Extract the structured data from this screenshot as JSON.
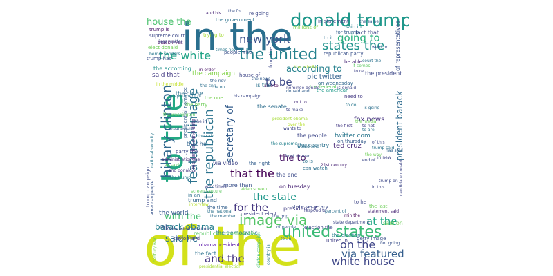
{
  "words": [
    {
      "text": "of the",
      "color": "#d3e11a"
    },
    {
      "text": "in the",
      "color": "#2a6f8e"
    },
    {
      "text": "to the",
      "color": "#23a883"
    },
    {
      "text": "donald trump",
      "color": "#1f988b"
    },
    {
      "text": "the united",
      "color": "#26828e"
    },
    {
      "text": "united states",
      "color": "#3aba76"
    },
    {
      "text": "hillary clinton",
      "color": "#31688e"
    },
    {
      "text": "featured image",
      "color": "#2c738e"
    },
    {
      "text": "image via",
      "color": "#54c568"
    },
    {
      "text": "states the",
      "color": "#1f938c"
    },
    {
      "text": "the white",
      "color": "#20a486"
    },
    {
      "text": "the republican",
      "color": "#2c738e"
    },
    {
      "text": "going to",
      "color": "#2ab07f"
    },
    {
      "text": "new york",
      "color": "#3b528b"
    },
    {
      "text": "that the",
      "color": "#440154"
    },
    {
      "text": "for the",
      "color": "#453781"
    },
    {
      "text": "the state",
      "color": "#1f988b"
    },
    {
      "text": "according to",
      "color": "#26818e"
    },
    {
      "text": "to be",
      "color": "#3e4a89"
    },
    {
      "text": "house the",
      "color": "#4ac16d"
    },
    {
      "text": "on the",
      "color": "#404688"
    },
    {
      "text": "at the",
      "color": "#22a785"
    },
    {
      "text": "white house",
      "color": "#3f4788"
    },
    {
      "text": "via featured",
      "color": "#355f8d"
    },
    {
      "text": "and the",
      "color": "#453581"
    },
    {
      "text": "barack obama",
      "color": "#277f8e"
    },
    {
      "text": "with the",
      "color": "#44bf70"
    },
    {
      "text": "said he",
      "color": "#2d708e"
    },
    {
      "text": "president barack",
      "color": "#2f6b8e"
    },
    {
      "text": "secretary of",
      "color": "#355e8d"
    },
    {
      "text": "the to",
      "color": "#471365"
    },
    {
      "text": "of representatives",
      "color": "#3b528b"
    },
    {
      "text": "pic twitter",
      "color": "#33628d"
    },
    {
      "text": "the president",
      "color": "#3e4989"
    },
    {
      "text": "ted cruz",
      "color": "#482979"
    },
    {
      "text": "fox news",
      "color": "#46337f"
    },
    {
      "text": "twitter com",
      "color": "#2a778e"
    },
    {
      "text": "via video",
      "color": "#3f4788"
    },
    {
      "text": "the right",
      "color": "#355f8d"
    },
    {
      "text": "the people",
      "color": "#3f4889"
    },
    {
      "text": "the country",
      "color": "#2c728e"
    },
    {
      "text": "on tuesday",
      "color": "#482374"
    },
    {
      "text": "on thursday",
      "color": "#365c8d"
    },
    {
      "text": "on wednesday",
      "color": "#31688e"
    },
    {
      "text": "the end",
      "color": "#3e4c8a"
    },
    {
      "text": "the senate",
      "color": "#2e6e8e"
    },
    {
      "text": "the campaign",
      "color": "#84d44b"
    },
    {
      "text": "the american",
      "color": "#1f9a8a"
    },
    {
      "text": "the federal",
      "color": "#5ec962"
    },
    {
      "text": "republican party",
      "color": "#3b528b"
    },
    {
      "text": "the according",
      "color": "#21918c"
    },
    {
      "text": "said that",
      "color": "#443a83"
    },
    {
      "text": "the time",
      "color": "#34608d"
    },
    {
      "text": "the world",
      "color": "#375b8d"
    },
    {
      "text": "trump and",
      "color": "#32648e"
    },
    {
      "text": "in an",
      "color": "#2d708e"
    },
    {
      "text": "more than",
      "color": "#3b518b"
    },
    {
      "text": "obama president",
      "color": "#4c02a1"
    },
    {
      "text": "the democratic",
      "color": "#2a788e"
    },
    {
      "text": "clinton and",
      "color": "#443983"
    },
    {
      "text": "the fact",
      "color": "#2c718e"
    },
    {
      "text": "republican presidential",
      "color": "#5ac864"
    },
    {
      "text": "president elect",
      "color": "#404588"
    },
    {
      "text": "election the",
      "color": "#3e4989"
    },
    {
      "text": "of people",
      "color": "#355f8d"
    },
    {
      "text": "state secretary",
      "color": "#3d4d8a"
    },
    {
      "text": "president of",
      "color": "#433e85"
    },
    {
      "text": "getty image",
      "color": "#3b528b"
    },
    {
      "text": "united in",
      "color": "#424086"
    },
    {
      "text": "the election",
      "color": "#26828e"
    },
    {
      "text": "state department",
      "color": "#3e4a89"
    },
    {
      "text": "said on",
      "color": "#6ccd5a"
    },
    {
      "text": "statement said",
      "color": "#482576"
    },
    {
      "text": "percent of",
      "color": "#2c718e"
    },
    {
      "text": "min the",
      "color": "#46075a"
    },
    {
      "text": "to is",
      "color": "#2c738e"
    },
    {
      "text": "to he",
      "color": "#3f4788"
    },
    {
      "text": "the last",
      "color": "#6ece58"
    },
    {
      "text": "said in",
      "color": "#26828e"
    },
    {
      "text": "fact that",
      "color": "#3e4c8a"
    },
    {
      "text": "be able",
      "color": "#482878"
    },
    {
      "text": "need to",
      "color": "#443983"
    },
    {
      "text": "to do",
      "color": "#2a788e"
    },
    {
      "text": "is donald",
      "color": "#3f4788"
    },
    {
      "text": "to it",
      "color": "#2d708e"
    },
    {
      "text": "in statement",
      "color": "#404588"
    },
    {
      "text": "trump is",
      "color": "#48186a"
    },
    {
      "text": "supreme court",
      "color": "#3e4a89"
    },
    {
      "text": "black lives",
      "color": "#471164"
    },
    {
      "text": "elect donald",
      "color": "#70cf57"
    },
    {
      "text": "bernie sanders",
      "color": "#2a788e"
    },
    {
      "text": "trump has",
      "color": "#3c508b"
    },
    {
      "text": "trying to",
      "color": "#a5db36"
    },
    {
      "text": "re going",
      "color": "#3e4989"
    },
    {
      "text": "and his",
      "color": "#482677"
    },
    {
      "text": "house of",
      "color": "#3f4788"
    },
    {
      "text": "people who",
      "color": "#3b528b"
    },
    {
      "text": "able to",
      "color": "#440154"
    },
    {
      "text": "the house",
      "color": "#2d708e"
    },
    {
      "text": "the party",
      "color": "#6ece58"
    },
    {
      "text": "in order",
      "color": "#471365"
    },
    {
      "text": "his campaign",
      "color": "#3e4a89"
    },
    {
      "text": "real estate",
      "color": "#355f8d"
    },
    {
      "text": "that he",
      "color": "#32658e"
    },
    {
      "text": "party the",
      "color": "#3e4989"
    },
    {
      "text": "administration the",
      "color": "#472d7b"
    },
    {
      "text": "and donald",
      "color": "#453882"
    },
    {
      "text": "the trump",
      "color": "#2a788e"
    },
    {
      "text": "the national",
      "color": "#2c728e"
    },
    {
      "text": "the member",
      "color": "#2e6f8e"
    },
    {
      "text": "obama administration",
      "color": "#414487"
    },
    {
      "text": "presidential election",
      "color": "#a8db34"
    },
    {
      "text": "presidential candidate",
      "color": "#46327e"
    },
    {
      "text": "presidential nominee",
      "color": "#355f8d"
    },
    {
      "text": "national security",
      "color": "#2a788e"
    },
    {
      "text": "trump campaign",
      "color": "#3e4c8a"
    },
    {
      "text": "american people",
      "color": "#39568c"
    },
    {
      "text": "21st century",
      "color": "#482475"
    },
    {
      "text": "front runner",
      "color": "#3b528b"
    },
    {
      "text": "the supreme",
      "color": "#26828e"
    },
    {
      "text": "has said",
      "color": "#32658e"
    },
    {
      "text": "end of",
      "color": "#3e4a89"
    },
    {
      "text": "in new",
      "color": "#414487"
    },
    {
      "text": "the first",
      "color": "#443983"
    },
    {
      "text": "would said",
      "color": "#2c718e"
    },
    {
      "text": "can watch",
      "color": "#2d708e"
    },
    {
      "text": "respond to",
      "color": "#404588"
    },
    {
      "text": "trump on",
      "color": "#3e4989"
    },
    {
      "text": "candidate donald",
      "color": "#3f4788"
    },
    {
      "text": "trump said",
      "color": "#2c738e"
    },
    {
      "text": "as said",
      "color": "#5ec962"
    },
    {
      "text": "the way",
      "color": "#70cf57"
    },
    {
      "text": "the gop",
      "color": "#3b528b"
    },
    {
      "text": "century war",
      "color": "#7ad151"
    },
    {
      "text": "clinton campaign",
      "color": "#42be71"
    },
    {
      "text": "country is",
      "color": "#2a788e"
    },
    {
      "text": "the nov",
      "color": "#34608d"
    },
    {
      "text": "the government",
      "color": "#2c728e"
    },
    {
      "text": "millions of",
      "color": "#7fd34e"
    },
    {
      "text": "for trump",
      "color": "#34608d"
    },
    {
      "text": "the same",
      "color": "#355f8d"
    },
    {
      "text": "to make",
      "color": "#3f4788"
    },
    {
      "text": "out to",
      "color": "#472d7b"
    },
    {
      "text": "it comes",
      "color": "#5ec962"
    },
    {
      "text": "the media",
      "color": "#70cf57"
    },
    {
      "text": "went on",
      "color": "#3b528b"
    },
    {
      "text": "is going",
      "color": "#2d708e"
    },
    {
      "text": "over the",
      "color": "#b5de2b"
    },
    {
      "text": "to not",
      "color": "#414487"
    },
    {
      "text": "to are",
      "color": "#2a788e"
    },
    {
      "text": "of this",
      "color": "#3e4a89"
    },
    {
      "text": "in this",
      "color": "#3f4788"
    },
    {
      "text": "the fbi",
      "color": "#3b528b"
    },
    {
      "text": "department of",
      "color": "#2c728e"
    },
    {
      "text": "nominee donald",
      "color": "#414487"
    },
    {
      "text": "the one",
      "color": "#7ad151"
    },
    {
      "text": "the in",
      "color": "#3e4c8a"
    },
    {
      "text": "the on",
      "color": "#2d708e"
    },
    {
      "text": "the said",
      "color": "#2a788e"
    },
    {
      "text": "the middle",
      "color": "#b5de2b"
    },
    {
      "text": "in the middle",
      "color": "#c2df23"
    },
    {
      "text": "not going",
      "color": "#3b528b"
    },
    {
      "text": "to an",
      "color": "#2c728e"
    },
    {
      "text": "york times",
      "color": "#404588"
    },
    {
      "text": "screen capture",
      "color": "#5ec962"
    },
    {
      "text": "video screen",
      "color": "#70cf57"
    },
    {
      "text": "interview",
      "color": "#b5de2b"
    },
    {
      "text": "from the",
      "color": "#3e4989"
    },
    {
      "text": "is the",
      "color": "#2c728e"
    },
    {
      "text": "the news",
      "color": "#355f8d"
    },
    {
      "text": "president obama",
      "color": "#a5db36"
    },
    {
      "text": "wants to",
      "color": "#3f4788"
    },
    {
      "text": "the cnn",
      "color": "#2d708e"
    },
    {
      "text": "rally in",
      "color": "#3b528b"
    },
    {
      "text": "times new",
      "color": "#2a788e"
    },
    {
      "text": "lives matter",
      "color": "#3e4a89"
    },
    {
      "text": "the washington",
      "color": "#5ec962"
    },
    {
      "text": "court the",
      "color": "#2c728e"
    },
    {
      "text": "to re",
      "color": "#404588"
    },
    {
      "text": "donald and",
      "color": "#355f8d"
    }
  ]
}
